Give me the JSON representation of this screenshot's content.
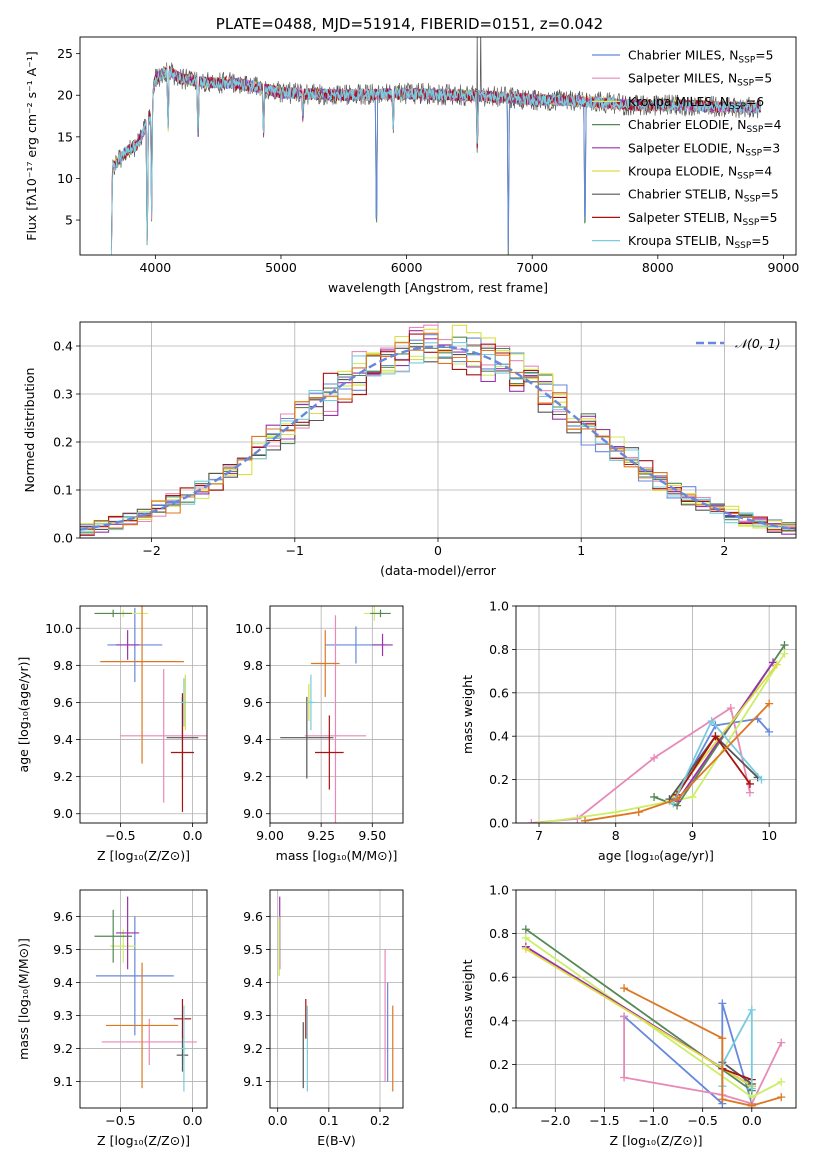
{
  "colors": [
    "#6688dd",
    "#e88ab8",
    "#ccee66",
    "#558855",
    "#9933aa",
    "#dddd44",
    "#555555",
    "#aa1111",
    "#77ccdd",
    "#dd7722"
  ],
  "chart_data": [
    {
      "id": "spectrum",
      "type": "line",
      "title": "PLATE=0488, MJD=51914, FIBERID=0151, z=0.042",
      "xlabel": "wavelength [Angstrom, rest frame]",
      "ylabel": "Flux [fλ10⁻¹⁷ erg cm⁻² s⁻¹ A⁻¹]",
      "xlim": [
        3400,
        9100
      ],
      "ylim": [
        0.8,
        27
      ],
      "xticks": [
        4000,
        5000,
        6000,
        7000,
        8000,
        9000
      ],
      "yticks": [
        5,
        10,
        15,
        20,
        25
      ],
      "grid": false,
      "legend_position": "top-right",
      "data_range": [
        3650,
        8820
      ],
      "legend": [
        {
          "label": "Chabrier MILES, N",
          "sub": "SSP",
          "suffix": "=5",
          "color": "#6688dd"
        },
        {
          "label": "Salpeter MILES, N",
          "sub": "SSP",
          "suffix": "=5",
          "color": "#e88ab8"
        },
        {
          "label": "Kroupa MILES, N",
          "sub": "SSP",
          "suffix": "=6",
          "color": "#ccee66"
        },
        {
          "label": "Chabrier ELODIE, N",
          "sub": "SSP",
          "suffix": "=4",
          "color": "#558855"
        },
        {
          "label": "Salpeter ELODIE, N",
          "sub": "SSP",
          "suffix": "=3",
          "color": "#9933aa"
        },
        {
          "label": "Kroupa ELODIE, N",
          "sub": "SSP",
          "suffix": "=4",
          "color": "#dddd44"
        },
        {
          "label": "Chabrier STELIB, N",
          "sub": "SSP",
          "suffix": "=5",
          "color": "#555555"
        },
        {
          "label": "Salpeter STELIB, N",
          "sub": "SSP",
          "suffix": "=5",
          "color": "#aa1111"
        },
        {
          "label": "Kroupa STELIB, N",
          "sub": "SSP",
          "suffix": "=5",
          "color": "#77ccdd"
        }
      ],
      "continuum_anchors": [
        [
          3650,
          11
        ],
        [
          3750,
          13
        ],
        [
          3850,
          14
        ],
        [
          3950,
          17
        ],
        [
          4000,
          22
        ],
        [
          4100,
          23
        ],
        [
          4200,
          22
        ],
        [
          4400,
          21.5
        ],
        [
          4600,
          21.5
        ],
        [
          4800,
          21
        ],
        [
          5000,
          20.3
        ],
        [
          5500,
          20
        ],
        [
          6000,
          20.2
        ],
        [
          6500,
          20
        ],
        [
          7000,
          19.5
        ],
        [
          7400,
          19.3
        ],
        [
          7800,
          18.8
        ],
        [
          8200,
          18.8
        ],
        [
          8500,
          18.6
        ],
        [
          8820,
          18.5
        ]
      ],
      "spectrum_dips": [
        {
          "x": 3650,
          "floor": 1.0
        },
        {
          "x": 3935,
          "floor": 1.0
        },
        {
          "x": 3970,
          "floor": 5.5
        },
        {
          "x": 4101,
          "floor": 15.5
        },
        {
          "x": 4340,
          "floor": 14
        },
        {
          "x": 4861,
          "floor": 15
        },
        {
          "x": 5175,
          "floor": 17
        },
        {
          "x": 5760,
          "floor": 1.0
        },
        {
          "x": 5893,
          "floor": 16
        },
        {
          "x": 6563,
          "floor": 13
        },
        {
          "x": 6810,
          "floor": 1.0
        },
        {
          "x": 7420,
          "floor": 1.0
        }
      ],
      "spectrum_spikes": [
        [
          6563,
          27
        ],
        [
          6590,
          27
        ]
      ]
    },
    {
      "id": "residuals",
      "type": "line",
      "xlabel": "(data-model)/error",
      "ylabel": "Normed distribution",
      "xlim": [
        -2.5,
        2.5
      ],
      "ylim": [
        0,
        0.45
      ],
      "xticks": [
        -2,
        -1,
        0,
        1,
        2
      ],
      "yticks": [
        0.0,
        0.1,
        0.2,
        0.3,
        0.4
      ],
      "grid": true,
      "legend_position": "top-right",
      "legend_label": "𝒩(0, 1)",
      "normal_color": "#6688dd",
      "bin_width": 0.1
    },
    {
      "id": "age-vs-Z",
      "type": "scatter",
      "xlabel": "Z [log₁₀(Z/Z⊙)]",
      "ylabel": "age  [log₁₀(age/yr)]",
      "xlim": [
        -0.78,
        0.1
      ],
      "ylim": [
        8.95,
        10.12
      ],
      "xticks": [
        -0.5,
        0.0
      ],
      "yticks": [
        9.0,
        9.2,
        9.4,
        9.6,
        9.8,
        10.0
      ],
      "grid": true,
      "points": [
        {
          "x": -0.4,
          "y": 9.91,
          "xerr": 0.19,
          "yerr": 0.2,
          "color": "#6688dd"
        },
        {
          "x": -0.2,
          "y": 9.42,
          "xerr": 0.3,
          "yerr": 0.36,
          "color": "#e88ab8"
        },
        {
          "x": -0.48,
          "y": 10.08,
          "xerr": 0.17,
          "yerr": 0.02,
          "color": "#ccee66"
        },
        {
          "x": -0.55,
          "y": 10.08,
          "xerr": 0.13,
          "yerr": 0.02,
          "color": "#558855"
        },
        {
          "x": -0.45,
          "y": 9.91,
          "xerr": 0.08,
          "yerr": 0.08,
          "color": "#9933aa"
        },
        {
          "x": -0.05,
          "y": 9.6,
          "xerr": 0.02,
          "yerr": 0.15,
          "color": "#dddd44"
        },
        {
          "x": -0.07,
          "y": 9.41,
          "xerr": 0.11,
          "yerr": 0.22,
          "color": "#555555"
        },
        {
          "x": -0.07,
          "y": 9.33,
          "xerr": 0.08,
          "yerr": 0.32,
          "color": "#aa1111"
        },
        {
          "x": -0.06,
          "y": 9.6,
          "xerr": 0.02,
          "yerr": 0.13,
          "color": "#77ccdd"
        },
        {
          "x": -0.35,
          "y": 9.82,
          "xerr": 0.29,
          "yerr": 0.55,
          "color": "#dd7722"
        }
      ]
    },
    {
      "id": "age-vs-mass",
      "type": "scatter",
      "xlabel": "mass [log₁₀(M/M⊙)]",
      "ylabel": "",
      "xlim": [
        9.0,
        9.65
      ],
      "ylim": [
        8.95,
        10.12
      ],
      "xticks": [
        9.0,
        9.25,
        9.5
      ],
      "yticks": [
        9.0,
        9.2,
        9.4,
        9.6,
        9.8,
        10.0
      ],
      "grid": true,
      "points": [
        {
          "x": 9.42,
          "y": 9.91,
          "xerr": 0.15,
          "yerr": 0.1,
          "color": "#6688dd"
        },
        {
          "x": 9.32,
          "y": 9.42,
          "xerr": 0.15,
          "yerr": 0.65,
          "color": "#e88ab8"
        },
        {
          "x": 9.51,
          "y": 10.08,
          "xerr": 0.05,
          "yerr": 0.04,
          "color": "#ccee66"
        },
        {
          "x": 9.54,
          "y": 10.08,
          "xerr": 0.05,
          "yerr": 0.02,
          "color": "#558855"
        },
        {
          "x": 9.55,
          "y": 9.91,
          "xerr": 0.05,
          "yerr": 0.06,
          "color": "#9933aa"
        },
        {
          "x": 9.19,
          "y": 9.6,
          "xerr": 0.02,
          "yerr": 0.1,
          "color": "#dddd44"
        },
        {
          "x": 9.18,
          "y": 9.41,
          "xerr": 0.13,
          "yerr": 0.22,
          "color": "#555555"
        },
        {
          "x": 9.29,
          "y": 9.33,
          "xerr": 0.07,
          "yerr": 0.2,
          "color": "#aa1111"
        },
        {
          "x": 9.2,
          "y": 9.6,
          "xerr": 0.02,
          "yerr": 0.15,
          "color": "#77ccdd"
        },
        {
          "x": 9.27,
          "y": 9.81,
          "xerr": 0.07,
          "yerr": 0.18,
          "color": "#dd7722"
        }
      ]
    },
    {
      "id": "mass-weight-vs-age",
      "type": "line",
      "xlabel": "age  [log₁₀(age/yr)]",
      "ylabel": "mass weight",
      "xlim": [
        6.7,
        10.35
      ],
      "ylim": [
        0,
        1
      ],
      "xticks": [
        7,
        8,
        9,
        10
      ],
      "yticks": [
        0.0,
        0.2,
        0.4,
        0.6,
        0.8,
        1.0
      ],
      "grid": true,
      "series": [
        {
          "color": "#6688dd",
          "x": [
            8.75,
            9.3,
            9.85,
            10.0
          ],
          "y": [
            0.1,
            0.45,
            0.48,
            0.42
          ]
        },
        {
          "color": "#e88ab8",
          "x": [
            6.9,
            7.5,
            8.5,
            9.5,
            9.75
          ],
          "y": [
            0.0,
            0.02,
            0.3,
            0.53,
            0.14
          ]
        },
        {
          "color": "#ccee66",
          "x": [
            7.0,
            8.0,
            9.0,
            10.2
          ],
          "y": [
            0.0,
            0.05,
            0.12,
            0.78
          ]
        },
        {
          "color": "#558855",
          "x": [
            8.5,
            8.8,
            10.2
          ],
          "y": [
            0.12,
            0.08,
            0.82
          ]
        },
        {
          "color": "#9933aa",
          "x": [
            8.8,
            10.05
          ],
          "y": [
            0.1,
            0.74
          ]
        },
        {
          "color": "#dddd44",
          "x": [
            8.7,
            10.1
          ],
          "y": [
            0.1,
            0.73
          ]
        },
        {
          "color": "#555555",
          "x": [
            8.7,
            9.3,
            9.85
          ],
          "y": [
            0.11,
            0.4,
            0.21
          ]
        },
        {
          "color": "#aa1111",
          "x": [
            8.8,
            9.3,
            9.75
          ],
          "y": [
            0.13,
            0.4,
            0.18
          ]
        },
        {
          "color": "#77ccdd",
          "x": [
            8.75,
            9.25,
            9.9
          ],
          "y": [
            0.09,
            0.47,
            0.2
          ]
        },
        {
          "color": "#dd7722",
          "x": [
            7.6,
            8.3,
            8.8,
            10.0
          ],
          "y": [
            0.01,
            0.05,
            0.11,
            0.55
          ]
        }
      ]
    },
    {
      "id": "mass-vs-Z",
      "type": "scatter",
      "xlabel": "Z [log₁₀(Z/Z⊙)]",
      "ylabel": "mass [log₁₀(M/M⊙)]",
      "xlim": [
        -0.78,
        0.1
      ],
      "ylim": [
        9.02,
        9.68
      ],
      "xticks": [
        -0.5,
        0.0
      ],
      "yticks": [
        9.1,
        9.2,
        9.3,
        9.4,
        9.5,
        9.6
      ],
      "grid": true,
      "points": [
        {
          "x": -0.4,
          "y": 9.42,
          "xerr": 0.27,
          "yerr": 0.18,
          "color": "#6688dd"
        },
        {
          "x": -0.3,
          "y": 9.22,
          "xerr": 0.33,
          "yerr": 0.07,
          "color": "#e88ab8"
        },
        {
          "x": -0.48,
          "y": 9.51,
          "xerr": 0.09,
          "yerr": 0.05,
          "color": "#ccee66"
        },
        {
          "x": -0.55,
          "y": 9.54,
          "xerr": 0.13,
          "yerr": 0.08,
          "color": "#558855"
        },
        {
          "x": -0.45,
          "y": 9.55,
          "xerr": 0.08,
          "yerr": 0.11,
          "color": "#9933aa"
        },
        {
          "x": -0.06,
          "y": 9.2,
          "xerr": 0.02,
          "yerr": 0.04,
          "color": "#dddd44"
        },
        {
          "x": -0.07,
          "y": 9.18,
          "xerr": 0.04,
          "yerr": 0.05,
          "color": "#555555"
        },
        {
          "x": -0.07,
          "y": 9.29,
          "xerr": 0.06,
          "yerr": 0.06,
          "color": "#aa1111"
        },
        {
          "x": -0.06,
          "y": 9.2,
          "xerr": 0.02,
          "yerr": 0.13,
          "color": "#77ccdd"
        },
        {
          "x": -0.35,
          "y": 9.27,
          "xerr": 0.25,
          "yerr": 0.19,
          "color": "#dd7722"
        }
      ]
    },
    {
      "id": "mass-vs-EBV",
      "type": "scatter",
      "xlabel": "E(B-V)",
      "ylabel": "",
      "xlim": [
        -0.015,
        0.245
      ],
      "ylim": [
        9.02,
        9.68
      ],
      "xticks": [
        0.0,
        0.1,
        0.2
      ],
      "yticks": [
        9.1,
        9.2,
        9.3,
        9.4,
        9.5,
        9.6
      ],
      "grid": true,
      "points": [
        {
          "x": 0.003,
          "y": 9.5,
          "xerr": 0.0,
          "yerr": 0.08,
          "color": "#dddd44"
        },
        {
          "x": 0.004,
          "y": 9.55,
          "xerr": 0.0,
          "yerr": 0.11,
          "color": "#9933aa"
        },
        {
          "x": 0.003,
          "y": 9.51,
          "xerr": 0.0,
          "yerr": 0.09,
          "color": "#ccee66"
        },
        {
          "x": 0.05,
          "y": 9.18,
          "xerr": 0.0,
          "yerr": 0.1,
          "color": "#555555"
        },
        {
          "x": 0.055,
          "y": 9.29,
          "xerr": 0.0,
          "yerr": 0.06,
          "color": "#aa1111"
        },
        {
          "x": 0.058,
          "y": 9.2,
          "xerr": 0.0,
          "yerr": 0.13,
          "color": "#77ccdd"
        },
        {
          "x": 0.21,
          "y": 9.3,
          "xerr": 0.0,
          "yerr": 0.2,
          "color": "#e88ab8"
        },
        {
          "x": 0.215,
          "y": 9.25,
          "xerr": 0.0,
          "yerr": 0.15,
          "color": "#6688dd"
        },
        {
          "x": 0.225,
          "y": 9.2,
          "xerr": 0.0,
          "yerr": 0.13,
          "color": "#dd7722"
        }
      ]
    },
    {
      "id": "mass-weight-vs-Z",
      "type": "line",
      "xlabel": "Z [log₁₀(Z/Z⊙)]",
      "ylabel": "mass weight",
      "xlim": [
        -2.4,
        0.45
      ],
      "ylim": [
        0,
        1
      ],
      "xticks": [
        -2.0,
        -1.5,
        -1.0,
        -0.5,
        0.0
      ],
      "yticks": [
        0.0,
        0.2,
        0.4,
        0.6,
        0.8,
        1.0
      ],
      "grid": true,
      "series": [
        {
          "color": "#6688dd",
          "x": [
            -1.3,
            -0.3,
            -0.3,
            0.0
          ],
          "y": [
            0.42,
            0.02,
            0.48,
            0.02
          ]
        },
        {
          "color": "#e88ab8",
          "x": [
            -1.3,
            -1.3,
            -0.3,
            0.0,
            0.3
          ],
          "y": [
            0.42,
            0.14,
            0.06,
            0.02,
            0.3
          ]
        },
        {
          "color": "#ccee66",
          "x": [
            -2.3,
            0.0,
            0.3
          ],
          "y": [
            0.78,
            0.05,
            0.12
          ]
        },
        {
          "color": "#558855",
          "x": [
            -2.3,
            0.0,
            0.0
          ],
          "y": [
            0.82,
            0.08,
            0.11
          ]
        },
        {
          "color": "#9933aa",
          "x": [
            -2.3,
            0.0
          ],
          "y": [
            0.74,
            0.1
          ]
        },
        {
          "color": "#dddd44",
          "x": [
            -2.3,
            0.0
          ],
          "y": [
            0.73,
            0.1
          ]
        },
        {
          "color": "#555555",
          "x": [
            -0.3,
            0.0
          ],
          "y": [
            0.21,
            0.11
          ]
        },
        {
          "color": "#aa1111",
          "x": [
            -0.3,
            0.0
          ],
          "y": [
            0.18,
            0.13
          ]
        },
        {
          "color": "#77ccdd",
          "x": [
            -0.3,
            -0.3,
            0.0,
            0.0
          ],
          "y": [
            0.1,
            0.2,
            0.45,
            0.09
          ]
        },
        {
          "color": "#dd7722",
          "x": [
            -1.3,
            -0.3,
            -0.3,
            0.0,
            0.3
          ],
          "y": [
            0.55,
            0.32,
            0.04,
            0.01,
            0.05
          ]
        }
      ]
    }
  ]
}
